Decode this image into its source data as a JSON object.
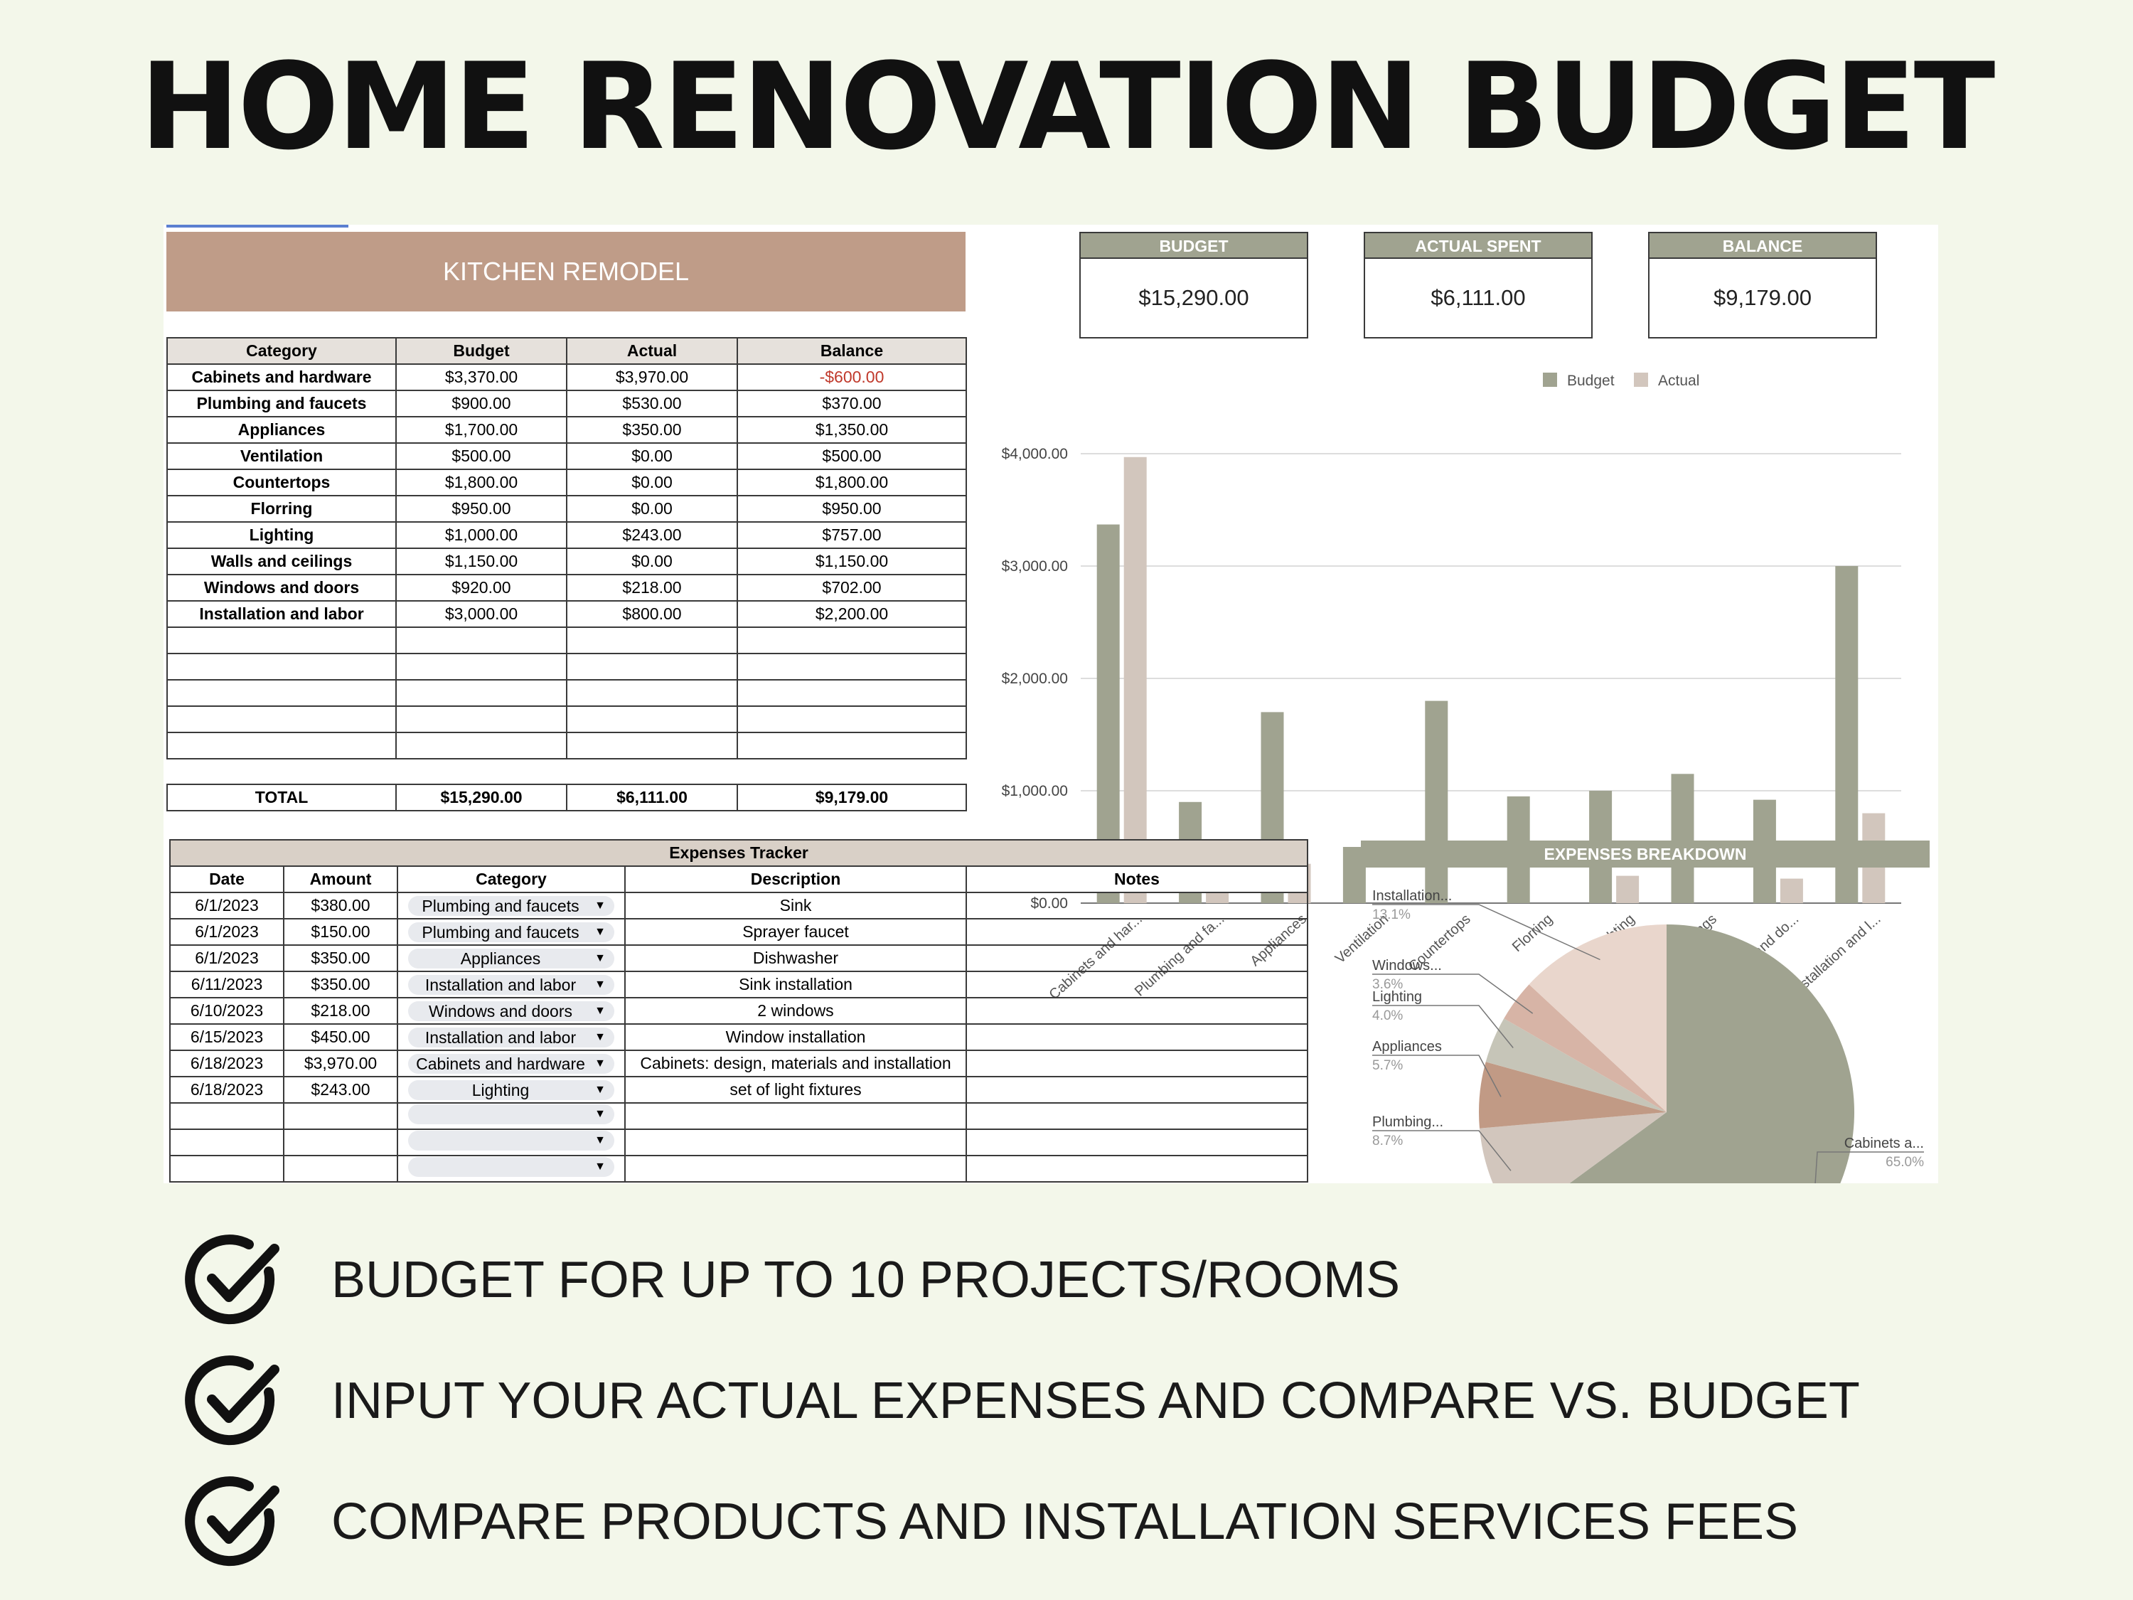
{
  "headline": "HOME RENOVATION BUDGET",
  "project_title": "KITCHEN REMODEL",
  "budget_table": {
    "headers": [
      "Category",
      "Budget",
      "Actual",
      "Balance"
    ],
    "rows": [
      {
        "category": "Cabinets and hardware",
        "budget": "$3,370.00",
        "actual": "$3,970.00",
        "balance": "-$600.00"
      },
      {
        "category": "Plumbing and faucets",
        "budget": "$900.00",
        "actual": "$530.00",
        "balance": "$370.00"
      },
      {
        "category": "Appliances",
        "budget": "$1,700.00",
        "actual": "$350.00",
        "balance": "$1,350.00"
      },
      {
        "category": "Ventilation",
        "budget": "$500.00",
        "actual": "$0.00",
        "balance": "$500.00"
      },
      {
        "category": "Countertops",
        "budget": "$1,800.00",
        "actual": "$0.00",
        "balance": "$1,800.00"
      },
      {
        "category": "Florring",
        "budget": "$950.00",
        "actual": "$0.00",
        "balance": "$950.00"
      },
      {
        "category": "Lighting",
        "budget": "$1,000.00",
        "actual": "$243.00",
        "balance": "$757.00"
      },
      {
        "category": "Walls and ceilings",
        "budget": "$1,150.00",
        "actual": "$0.00",
        "balance": "$1,150.00"
      },
      {
        "category": "Windows and doors",
        "budget": "$920.00",
        "actual": "$218.00",
        "balance": "$702.00"
      },
      {
        "category": "Installation and labor",
        "budget": "$3,000.00",
        "actual": "$800.00",
        "balance": "$2,200.00"
      }
    ],
    "total": {
      "label": "TOTAL",
      "budget": "$15,290.00",
      "actual": "$6,111.00",
      "balance": "$9,179.00"
    }
  },
  "kpis": {
    "budget": {
      "label": "BUDGET",
      "value": "$15,290.00"
    },
    "actual": {
      "label": "ACTUAL SPENT",
      "value": "$6,111.00"
    },
    "balance": {
      "label": "BALANCE",
      "value": "$9,179.00"
    }
  },
  "expenses": {
    "title": "Expenses Tracker",
    "headers": [
      "Date",
      "Amount",
      "Category",
      "Description",
      "Notes"
    ],
    "rows": [
      {
        "date": "6/1/2023",
        "amount": "$380.00",
        "category": "Plumbing and faucets",
        "description": "Sink",
        "notes": ""
      },
      {
        "date": "6/1/2023",
        "amount": "$150.00",
        "category": "Plumbing and faucets",
        "description": "Sprayer faucet",
        "notes": ""
      },
      {
        "date": "6/1/2023",
        "amount": "$350.00",
        "category": "Appliances",
        "description": "Dishwasher",
        "notes": ""
      },
      {
        "date": "6/11/2023",
        "amount": "$350.00",
        "category": "Installation and labor",
        "description": "Sink installation",
        "notes": ""
      },
      {
        "date": "6/10/2023",
        "amount": "$218.00",
        "category": "Windows and doors",
        "description": "2 windows",
        "notes": ""
      },
      {
        "date": "6/15/2023",
        "amount": "$450.00",
        "category": "Installation and labor",
        "description": "Window installation",
        "notes": ""
      },
      {
        "date": "6/18/2023",
        "amount": "$3,970.00",
        "category": "Cabinets and hardware",
        "description": "Cabinets: design, materials and installation",
        "notes": ""
      },
      {
        "date": "6/18/2023",
        "amount": "$243.00",
        "category": "Lighting",
        "description": "set of light fixtures",
        "notes": ""
      }
    ]
  },
  "colors": {
    "budget": "#a0a390",
    "actual": "#d2c6bd",
    "banner": "#bf9c88",
    "grid": "#dddddd"
  },
  "chart_data": [
    {
      "type": "bar",
      "categories": [
        "Cabinets and har...",
        "Plumbing and fa...",
        "Appliances",
        "Ventilation",
        "Countertops",
        "Florring",
        "Lighting",
        "Walls and ceilings",
        "Windows and do...",
        "Installation and l..."
      ],
      "series": [
        {
          "name": "Budget",
          "values": [
            3370,
            900,
            1700,
            500,
            1800,
            950,
            1000,
            1150,
            920,
            3000
          ]
        },
        {
          "name": "Actual",
          "values": [
            3970,
            530,
            350,
            0,
            0,
            0,
            243,
            0,
            218,
            800
          ]
        }
      ],
      "yticks": [
        "$0.00",
        "$1,000.00",
        "$2,000.00",
        "$3,000.00",
        "$4,000.00"
      ],
      "ylim": [
        0,
        4000
      ],
      "legend": "top",
      "grid": true
    },
    {
      "type": "pie",
      "title": "EXPENSES BREAKDOWN",
      "slices": [
        {
          "label": "Cabinets a...",
          "pct": "65.0%",
          "value": 65.0,
          "color": "#a0a390"
        },
        {
          "label": "Plumbing...",
          "pct": "8.7%",
          "value": 8.7,
          "color": "#d2c6bd"
        },
        {
          "label": "Appliances",
          "pct": "5.7%",
          "value": 5.7,
          "color": "#c19a85"
        },
        {
          "label": "Lighting",
          "pct": "4.0%",
          "value": 4.0,
          "color": "#c6c5b8"
        },
        {
          "label": "Windows...",
          "pct": "3.6%",
          "value": 3.6,
          "color": "#d7b4a6"
        },
        {
          "label": "Installation...",
          "pct": "13.1%",
          "value": 13.1,
          "color": "#e9d6cc"
        }
      ]
    }
  ],
  "features": [
    "BUDGET FOR UP TO 10 PROJECTS/ROOMS",
    "INPUT YOUR ACTUAL EXPENSES AND COMPARE VS. BUDGET",
    "COMPARE PRODUCTS AND INSTALLATION SERVICES FEES"
  ]
}
